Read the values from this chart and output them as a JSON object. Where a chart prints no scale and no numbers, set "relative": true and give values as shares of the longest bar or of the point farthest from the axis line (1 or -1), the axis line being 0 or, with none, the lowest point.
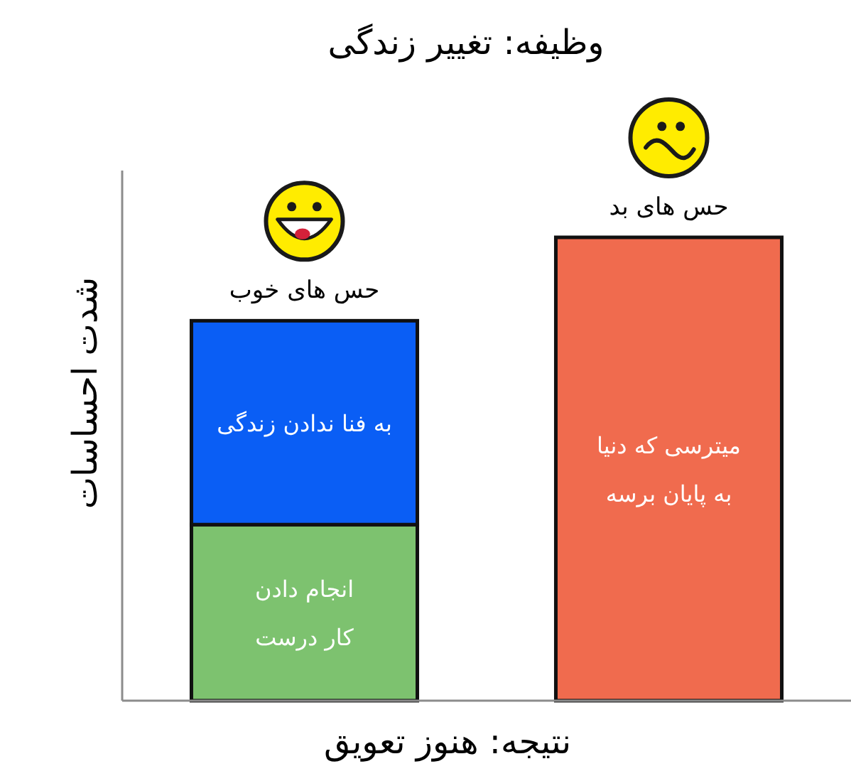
{
  "chart_data": {
    "type": "bar",
    "title": "وظیفه: تغییر زندگی",
    "xlabel": "نتیجه: هنوز تعویق",
    "ylabel": "شدت احساسات",
    "stacked": true,
    "relative": true,
    "categories": [
      "حس های خوب",
      "حس های بد"
    ],
    "series": [
      {
        "name": "انجام دادن کار درست",
        "color": "#7dc26f",
        "values": [
          0.38,
          null
        ]
      },
      {
        "name": "به فنا ندادن زندگی",
        "color": "#0a5ef5",
        "values": [
          0.44,
          null
        ]
      },
      {
        "name": "میترسی که دنیا به پایان برسه",
        "color": "#f06b4e",
        "values": [
          null,
          1
        ]
      }
    ]
  }
}
